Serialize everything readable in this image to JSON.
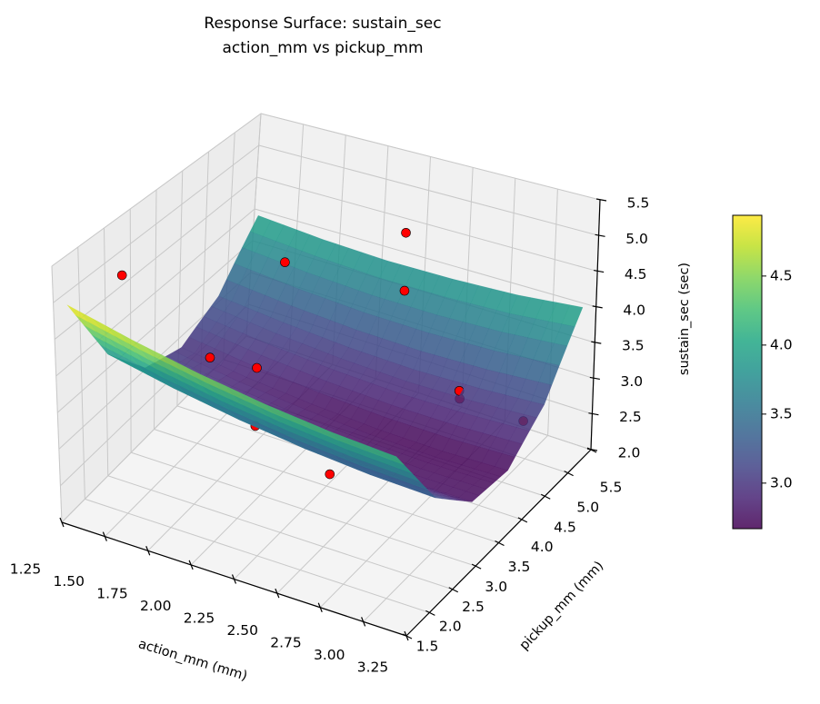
{
  "chart_data": {
    "type": "surface3d",
    "title": "Response Surface: sustain_sec",
    "subtitle": "action_mm vs pickup_mm",
    "xlabel": "action_mm (mm)",
    "ylabel": "pickup_mm (mm)",
    "zlabel": "sustain_sec (sec)",
    "xlim": [
      1.25,
      3.25
    ],
    "ylim": [
      1.5,
      5.5
    ],
    "zlim": [
      2.0,
      5.5
    ],
    "xticks": [
      "1.25",
      "1.50",
      "1.75",
      "2.00",
      "2.25",
      "2.50",
      "2.75",
      "3.00",
      "3.25"
    ],
    "yticks": [
      "1.5",
      "2.0",
      "2.5",
      "3.0",
      "3.5",
      "4.0",
      "4.5",
      "5.0",
      "5.5"
    ],
    "zticks": [
      "2.0",
      "2.5",
      "3.0",
      "3.5",
      "4.0",
      "4.5",
      "5.0",
      "5.5"
    ],
    "grid": true,
    "colormap": "viridis",
    "surface": {
      "x": [
        1.3,
        1.68,
        2.06,
        2.44,
        2.82,
        3.2
      ],
      "y": [
        1.6,
        2.36,
        3.12,
        3.88,
        4.64,
        5.4
      ],
      "z": [
        [
          4.95,
          4.72,
          4.53,
          4.38,
          4.27,
          4.2
        ],
        [
          3.84,
          3.64,
          3.48,
          3.36,
          3.28,
          3.24
        ],
        [
          3.18,
          3.01,
          2.88,
          2.8,
          2.75,
          2.74
        ],
        [
          2.99,
          2.85,
          2.76,
          2.7,
          2.68,
          2.7
        ],
        [
          3.26,
          3.16,
          3.09,
          3.06,
          3.08,
          3.13
        ],
        [
          4.0,
          3.92,
          3.88,
          3.89,
          3.93,
          4.02
        ]
      ],
      "alpha": 0.85
    },
    "points": {
      "color": "#ff0000",
      "x": [
        1.39,
        2.46,
        1.76,
        2.36,
        1.54,
        1.76,
        2.72,
        2.71,
        2.98,
        1.96,
        2.34
      ],
      "y": [
        2.37,
        4.34,
        4.34,
        4.69,
        3.61,
        3.8,
        4.59,
        4.64,
        5.02,
        3.05,
        3.24
      ],
      "z": [
        5.0,
        5.2,
        4.3,
        4.1,
        3.2,
        3.1,
        3.0,
        2.85,
        2.5,
        2.9,
        2.4
      ]
    },
    "colorbar": {
      "range": [
        2.67,
        4.94
      ],
      "ticks": [
        "3.0",
        "3.5",
        "4.0",
        "4.5"
      ]
    }
  }
}
